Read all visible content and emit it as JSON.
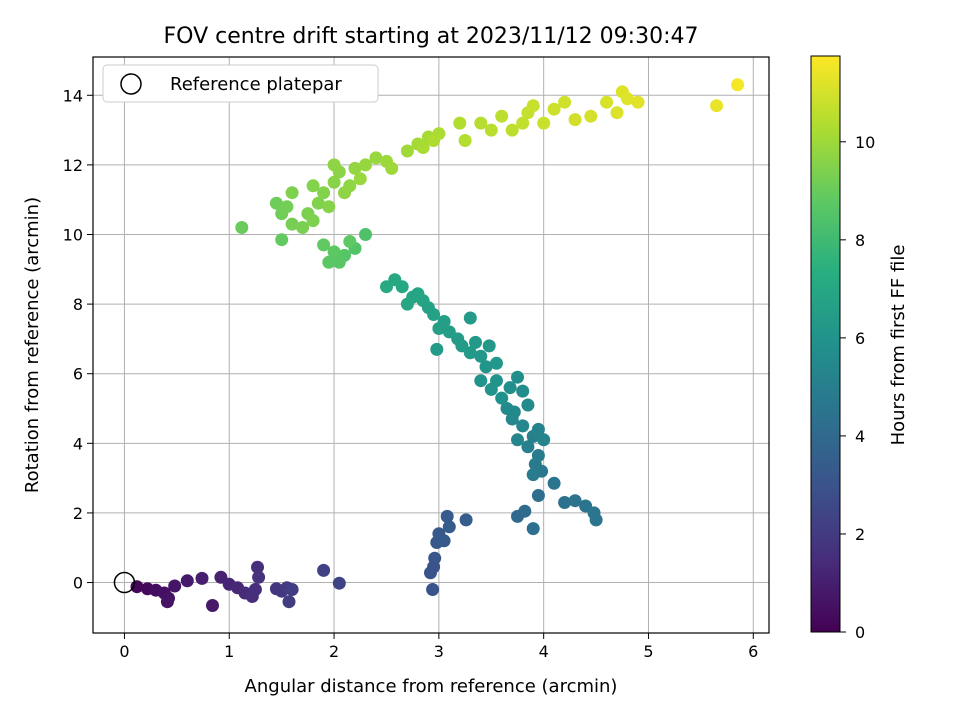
{
  "chart_data": {
    "type": "scatter",
    "title": "FOV centre drift starting at 2023/11/12 09:30:47",
    "xlabel": "Angular distance from reference (arcmin)",
    "ylabel": "Rotation from reference (arcmin)",
    "xlim": [
      -0.3,
      6.15
    ],
    "ylim": [
      -1.45,
      15.1
    ],
    "xticks": [
      0,
      1,
      2,
      3,
      4,
      5,
      6
    ],
    "yticks": [
      0,
      2,
      4,
      6,
      8,
      10,
      12,
      14
    ],
    "grid": true,
    "legend": {
      "position": "top-left",
      "entries": [
        "Reference platepar"
      ]
    },
    "reference_point": {
      "x": 0,
      "y": 0
    },
    "colorbar": {
      "label": "Hours from first FF file",
      "range": [
        0,
        11.75
      ],
      "ticks": [
        0,
        2,
        4,
        6,
        8,
        10
      ],
      "colormap": "viridis"
    },
    "points": [
      [
        0.12,
        -0.12,
        0.2
      ],
      [
        0.22,
        -0.18,
        0.3
      ],
      [
        0.3,
        -0.22,
        0.4
      ],
      [
        0.38,
        -0.3,
        0.5
      ],
      [
        0.42,
        -0.45,
        0.6
      ],
      [
        0.41,
        -0.55,
        0.65
      ],
      [
        0.48,
        -0.1,
        0.7
      ],
      [
        0.6,
        0.05,
        0.85
      ],
      [
        0.74,
        0.12,
        1.0
      ],
      [
        0.84,
        -0.66,
        0.8
      ],
      [
        0.92,
        0.15,
        1.1
      ],
      [
        1.0,
        -0.05,
        1.2
      ],
      [
        1.08,
        -0.15,
        1.3
      ],
      [
        1.15,
        -0.3,
        1.4
      ],
      [
        1.22,
        -0.4,
        1.5
      ],
      [
        1.25,
        -0.2,
        1.55
      ],
      [
        1.27,
        0.44,
        1.6
      ],
      [
        1.28,
        0.15,
        1.65
      ],
      [
        1.45,
        -0.18,
        1.8
      ],
      [
        1.5,
        -0.25,
        1.9
      ],
      [
        1.55,
        -0.15,
        2.0
      ],
      [
        1.57,
        -0.55,
        2.05
      ],
      [
        1.6,
        -0.2,
        2.1
      ],
      [
        1.9,
        0.35,
        2.3
      ],
      [
        2.05,
        -0.02,
        2.4
      ],
      [
        2.92,
        0.28,
        3.0
      ],
      [
        2.95,
        0.45,
        3.05
      ],
      [
        2.96,
        0.7,
        3.1
      ],
      [
        2.94,
        -0.2,
        3.0
      ],
      [
        2.98,
        1.15,
        3.2
      ],
      [
        3.0,
        1.4,
        3.25
      ],
      [
        3.05,
        1.2,
        3.3
      ],
      [
        3.08,
        1.9,
        3.35
      ],
      [
        3.1,
        1.6,
        3.4
      ],
      [
        3.26,
        1.8,
        3.5
      ],
      [
        3.75,
        1.9,
        4.0
      ],
      [
        3.82,
        2.05,
        4.1
      ],
      [
        3.9,
        1.55,
        4.2
      ],
      [
        3.95,
        2.5,
        4.3
      ],
      [
        4.2,
        2.3,
        4.4
      ],
      [
        4.3,
        2.35,
        4.45
      ],
      [
        4.4,
        2.2,
        4.5
      ],
      [
        4.48,
        2.0,
        4.55
      ],
      [
        4.5,
        1.8,
        4.6
      ],
      [
        4.1,
        2.85,
        4.6
      ],
      [
        3.98,
        3.2,
        4.7
      ],
      [
        3.92,
        3.4,
        4.8
      ],
      [
        3.9,
        3.1,
        4.85
      ],
      [
        3.95,
        3.65,
        4.9
      ],
      [
        3.85,
        3.9,
        5.0
      ],
      [
        3.9,
        4.2,
        5.1
      ],
      [
        3.95,
        4.4,
        5.2
      ],
      [
        4.0,
        4.1,
        5.25
      ],
      [
        3.75,
        4.1,
        5.3
      ],
      [
        3.8,
        4.5,
        5.35
      ],
      [
        3.7,
        4.7,
        5.4
      ],
      [
        3.65,
        5.0,
        5.5
      ],
      [
        3.72,
        4.9,
        5.55
      ],
      [
        3.85,
        5.1,
        5.6
      ],
      [
        3.8,
        5.5,
        5.7
      ],
      [
        3.75,
        5.9,
        5.75
      ],
      [
        3.68,
        5.6,
        5.8
      ],
      [
        3.6,
        5.3,
        5.9
      ],
      [
        3.55,
        5.8,
        6.0
      ],
      [
        3.5,
        5.55,
        6.05
      ],
      [
        3.45,
        6.2,
        6.1
      ],
      [
        3.4,
        6.5,
        6.2
      ],
      [
        3.48,
        6.8,
        6.25
      ],
      [
        3.35,
        6.9,
        6.3
      ],
      [
        3.3,
        6.6,
        6.35
      ],
      [
        3.22,
        6.8,
        6.4
      ],
      [
        3.18,
        7.0,
        6.45
      ],
      [
        3.1,
        7.2,
        6.5
      ],
      [
        3.05,
        7.5,
        6.55
      ],
      [
        3.0,
        7.3,
        6.6
      ],
      [
        2.95,
        7.7,
        6.7
      ],
      [
        2.9,
        7.9,
        6.75
      ],
      [
        2.85,
        8.1,
        6.8
      ],
      [
        2.8,
        8.3,
        6.85
      ],
      [
        2.75,
        8.2,
        6.9
      ],
      [
        2.7,
        8.0,
        6.95
      ],
      [
        2.65,
        8.5,
        7.0
      ],
      [
        2.58,
        8.7,
        7.05
      ],
      [
        2.5,
        8.5,
        7.1
      ],
      [
        3.3,
        7.6,
        6.4
      ],
      [
        2.98,
        6.7,
        6.4
      ],
      [
        3.4,
        5.8,
        6.0
      ],
      [
        3.55,
        6.3,
        6.2
      ],
      [
        2.3,
        10.0,
        8.4
      ],
      [
        2.2,
        9.6,
        8.5
      ],
      [
        2.1,
        9.4,
        8.6
      ],
      [
        2.05,
        9.2,
        8.65
      ],
      [
        1.95,
        9.2,
        8.7
      ],
      [
        2.0,
        9.5,
        8.75
      ],
      [
        2.15,
        9.8,
        8.8
      ],
      [
        1.9,
        9.7,
        8.85
      ],
      [
        1.5,
        9.85,
        8.9
      ],
      [
        1.12,
        10.2,
        9.0
      ],
      [
        1.45,
        10.9,
        9.1
      ],
      [
        1.5,
        10.6,
        9.15
      ],
      [
        1.55,
        10.8,
        9.2
      ],
      [
        1.6,
        10.3,
        9.25
      ],
      [
        1.7,
        10.2,
        9.3
      ],
      [
        1.75,
        10.6,
        9.35
      ],
      [
        1.8,
        10.4,
        9.4
      ],
      [
        1.85,
        10.9,
        9.45
      ],
      [
        1.9,
        11.2,
        9.5
      ],
      [
        1.95,
        10.8,
        9.55
      ],
      [
        2.0,
        11.5,
        9.6
      ],
      [
        2.05,
        11.8,
        9.65
      ],
      [
        2.1,
        11.2,
        9.7
      ],
      [
        2.15,
        11.4,
        9.75
      ],
      [
        2.2,
        11.9,
        9.8
      ],
      [
        2.3,
        12.0,
        9.85
      ],
      [
        2.25,
        11.6,
        9.9
      ],
      [
        1.6,
        11.2,
        9.4
      ],
      [
        1.8,
        11.4,
        9.5
      ],
      [
        2.0,
        12.0,
        9.7
      ],
      [
        2.4,
        12.2,
        9.9
      ],
      [
        2.5,
        12.1,
        9.95
      ],
      [
        2.55,
        11.9,
        10.0
      ],
      [
        2.7,
        12.4,
        10.05
      ],
      [
        2.8,
        12.6,
        10.1
      ],
      [
        2.9,
        12.8,
        10.15
      ],
      [
        2.85,
        12.5,
        10.2
      ],
      [
        3.0,
        12.9,
        10.25
      ],
      [
        2.95,
        12.7,
        10.3
      ],
      [
        3.2,
        13.2,
        10.35
      ],
      [
        3.25,
        12.7,
        10.4
      ],
      [
        3.4,
        13.2,
        10.45
      ],
      [
        3.5,
        13.0,
        10.5
      ],
      [
        3.6,
        13.4,
        10.55
      ],
      [
        3.7,
        13.0,
        10.6
      ],
      [
        3.8,
        13.2,
        10.65
      ],
      [
        3.85,
        13.5,
        10.7
      ],
      [
        3.9,
        13.7,
        10.75
      ],
      [
        4.0,
        13.2,
        10.8
      ],
      [
        4.1,
        13.6,
        10.85
      ],
      [
        4.2,
        13.8,
        10.9
      ],
      [
        4.3,
        13.3,
        10.95
      ],
      [
        4.45,
        13.4,
        11.0
      ],
      [
        4.6,
        13.8,
        11.05
      ],
      [
        4.7,
        13.5,
        11.1
      ],
      [
        4.75,
        14.1,
        11.15
      ],
      [
        4.8,
        13.9,
        11.2
      ],
      [
        4.9,
        13.8,
        11.25
      ],
      [
        5.65,
        13.7,
        11.4
      ],
      [
        5.85,
        14.3,
        11.6
      ]
    ]
  }
}
